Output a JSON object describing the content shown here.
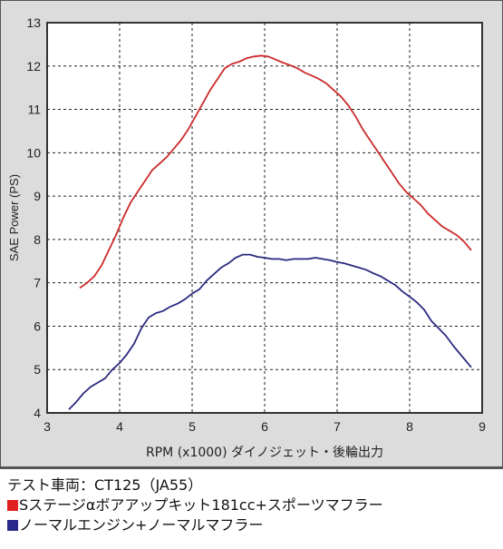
{
  "chart_data": {
    "type": "line",
    "xlabel": "RPM (x1000) ダイノジェット・後輪出力",
    "ylabel": "SAE Power (PS)",
    "xlim": [
      3,
      9
    ],
    "ylim": [
      4,
      13
    ],
    "xticks": [
      "3",
      "4",
      "5",
      "6",
      "7",
      "8",
      "9"
    ],
    "yticks": [
      "4",
      "5",
      "6",
      "7",
      "8",
      "9",
      "10",
      "11",
      "12",
      "13"
    ],
    "grid": true,
    "series": [
      {
        "color": "#cc2a2a",
        "x": [
          3.45,
          3.55,
          3.65,
          3.75,
          3.85,
          3.95,
          4.05,
          4.15,
          4.25,
          4.35,
          4.45,
          4.55,
          4.65,
          4.75,
          4.85,
          4.95,
          5.05,
          5.15,
          5.25,
          5.35,
          5.45,
          5.55,
          5.65,
          5.75,
          5.85,
          5.95,
          6.05,
          6.15,
          6.25,
          6.35,
          6.45,
          6.55,
          6.65,
          6.75,
          6.85,
          6.95,
          7.05,
          7.15,
          7.25,
          7.35,
          7.45,
          7.55,
          7.65,
          7.75,
          7.85,
          7.95,
          8.05,
          8.15,
          8.25,
          8.35,
          8.45,
          8.55,
          8.65,
          8.75,
          8.85
        ],
        "values": [
          6.88,
          7.0,
          7.15,
          7.4,
          7.75,
          8.1,
          8.5,
          8.85,
          9.1,
          9.35,
          9.6,
          9.75,
          9.9,
          10.1,
          10.3,
          10.55,
          10.85,
          11.15,
          11.45,
          11.7,
          11.95,
          12.05,
          12.1,
          12.18,
          12.22,
          12.24,
          12.22,
          12.15,
          12.08,
          12.02,
          11.95,
          11.85,
          11.78,
          11.7,
          11.6,
          11.45,
          11.3,
          11.1,
          10.85,
          10.55,
          10.3,
          10.05,
          9.8,
          9.55,
          9.3,
          9.1,
          8.95,
          8.8,
          8.6,
          8.45,
          8.3,
          8.2,
          8.1,
          7.95,
          7.75
        ]
      },
      {
        "color": "#2a2a80",
        "x": [
          3.3,
          3.4,
          3.5,
          3.6,
          3.7,
          3.8,
          3.9,
          4.0,
          4.1,
          4.2,
          4.3,
          4.4,
          4.5,
          4.6,
          4.7,
          4.8,
          4.9,
          5.0,
          5.1,
          5.2,
          5.3,
          5.4,
          5.5,
          5.6,
          5.7,
          5.8,
          5.9,
          6.0,
          6.1,
          6.2,
          6.3,
          6.4,
          6.5,
          6.6,
          6.7,
          6.8,
          6.9,
          7.0,
          7.1,
          7.2,
          7.3,
          7.4,
          7.5,
          7.6,
          7.7,
          7.8,
          7.9,
          8.0,
          8.1,
          8.2,
          8.3,
          8.4,
          8.5,
          8.6,
          8.7,
          8.8,
          8.85
        ],
        "values": [
          4.08,
          4.25,
          4.45,
          4.6,
          4.7,
          4.8,
          5.0,
          5.15,
          5.35,
          5.6,
          5.95,
          6.2,
          6.3,
          6.35,
          6.45,
          6.52,
          6.62,
          6.75,
          6.85,
          7.05,
          7.2,
          7.35,
          7.45,
          7.58,
          7.65,
          7.65,
          7.6,
          7.58,
          7.55,
          7.55,
          7.52,
          7.55,
          7.55,
          7.55,
          7.58,
          7.55,
          7.52,
          7.48,
          7.45,
          7.4,
          7.35,
          7.3,
          7.22,
          7.15,
          7.05,
          6.95,
          6.8,
          6.68,
          6.55,
          6.38,
          6.12,
          5.95,
          5.78,
          5.55,
          5.35,
          5.15,
          5.05
        ]
      }
    ]
  },
  "info": {
    "test_vehicle": "テスト車両：CT125（JA55）",
    "legend": [
      {
        "label": "Sステージαボアアップキット181cc+スポーツマフラー",
        "color": "#e02020"
      },
      {
        "label": "ノーマルエンジン+ノーマルマフラー",
        "color": "#2a2a8c"
      }
    ]
  }
}
